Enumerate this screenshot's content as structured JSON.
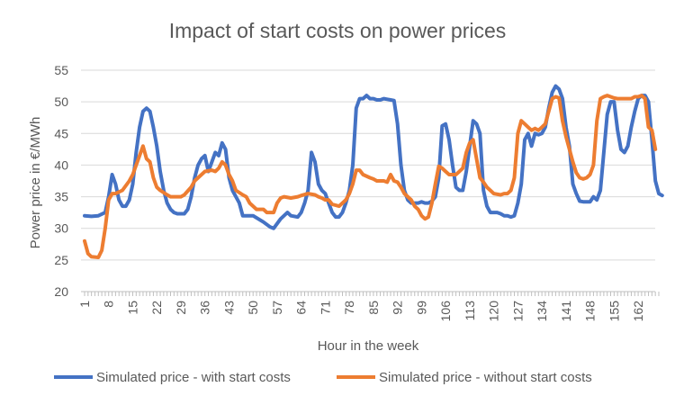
{
  "chart_data": {
    "type": "line",
    "title": "Impact of start costs on power prices",
    "xlabel": "Hour in the week",
    "ylabel": "Power price in €/MWh",
    "ylim": [
      20,
      55
    ],
    "xlim": [
      1,
      168
    ],
    "yticks": [
      "20",
      "25",
      "30",
      "35",
      "40",
      "45",
      "50",
      "55"
    ],
    "xticks": [
      "1",
      "8",
      "15",
      "22",
      "29",
      "36",
      "43",
      "50",
      "57",
      "64",
      "71",
      "78",
      "85",
      "92",
      "99",
      "106",
      "113",
      "120",
      "127",
      "134",
      "141",
      "148",
      "155",
      "162"
    ],
    "grid": true,
    "legend": "bottom",
    "series": [
      {
        "name": "Simulated price - with start costs",
        "color": "#4472C4",
        "points": [
          [
            1,
            32
          ],
          [
            3,
            31.9
          ],
          [
            5,
            32
          ],
          [
            7,
            32.5
          ],
          [
            8,
            35
          ],
          [
            9,
            38.5
          ],
          [
            10,
            37
          ],
          [
            11,
            34.5
          ],
          [
            12,
            33.5
          ],
          [
            13,
            33.5
          ],
          [
            14,
            34.5
          ],
          [
            15,
            37
          ],
          [
            16,
            42
          ],
          [
            17,
            46
          ],
          [
            18,
            48.5
          ],
          [
            19,
            49
          ],
          [
            20,
            48.5
          ],
          [
            21,
            46
          ],
          [
            22,
            43
          ],
          [
            23,
            39
          ],
          [
            24,
            36
          ],
          [
            25,
            34
          ],
          [
            26,
            33
          ],
          [
            27,
            32.5
          ],
          [
            28,
            32.3
          ],
          [
            29,
            32.3
          ],
          [
            30,
            32.3
          ],
          [
            31,
            33
          ],
          [
            32,
            35
          ],
          [
            33,
            38
          ],
          [
            34,
            40
          ],
          [
            35,
            41
          ],
          [
            36,
            41.5
          ],
          [
            37,
            39
          ],
          [
            38,
            40.5
          ],
          [
            39,
            42
          ],
          [
            40,
            41.5
          ],
          [
            41,
            43.5
          ],
          [
            42,
            42.5
          ],
          [
            43,
            38
          ],
          [
            44,
            36
          ],
          [
            45,
            35
          ],
          [
            46,
            34
          ],
          [
            47,
            32
          ],
          [
            50,
            32
          ],
          [
            53,
            31
          ],
          [
            55,
            30.2
          ],
          [
            56,
            30
          ],
          [
            58,
            31.5
          ],
          [
            60,
            32.5
          ],
          [
            61,
            32
          ],
          [
            63,
            31.8
          ],
          [
            64,
            32.5
          ],
          [
            65,
            34
          ],
          [
            66,
            36
          ],
          [
            67,
            42
          ],
          [
            68,
            40.5
          ],
          [
            69,
            37
          ],
          [
            70,
            36
          ],
          [
            71,
            35.5
          ],
          [
            72,
            34
          ],
          [
            73,
            32.5
          ],
          [
            74,
            31.8
          ],
          [
            75,
            31.8
          ],
          [
            76,
            32.5
          ],
          [
            77,
            34
          ],
          [
            78,
            36
          ],
          [
            79,
            40
          ],
          [
            80,
            49
          ],
          [
            81,
            50.5
          ],
          [
            82,
            50.5
          ],
          [
            83,
            51
          ],
          [
            84,
            50.5
          ],
          [
            85,
            50.5
          ],
          [
            86,
            50.3
          ],
          [
            87,
            50.3
          ],
          [
            88,
            50.5
          ],
          [
            89,
            50.4
          ],
          [
            90,
            50.3
          ],
          [
            91,
            50.2
          ],
          [
            92,
            46.5
          ],
          [
            93,
            40
          ],
          [
            94,
            36
          ],
          [
            95,
            34.5
          ],
          [
            96,
            34
          ],
          [
            97,
            34
          ],
          [
            98,
            34
          ],
          [
            99,
            34.2
          ],
          [
            100,
            34
          ],
          [
            101,
            34
          ],
          [
            102,
            34.3
          ],
          [
            103,
            35
          ],
          [
            104,
            38
          ],
          [
            105,
            46.2
          ],
          [
            106,
            46.5
          ],
          [
            107,
            44
          ],
          [
            108,
            40
          ],
          [
            109,
            36.5
          ],
          [
            110,
            36
          ],
          [
            111,
            36
          ],
          [
            112,
            39
          ],
          [
            113,
            43
          ],
          [
            114,
            47
          ],
          [
            115,
            46.5
          ],
          [
            116,
            45
          ],
          [
            117,
            36
          ],
          [
            118,
            33.5
          ],
          [
            119,
            32.5
          ],
          [
            120,
            32.5
          ],
          [
            121,
            32.5
          ],
          [
            122,
            32.3
          ],
          [
            123,
            32
          ],
          [
            124,
            32
          ],
          [
            125,
            31.8
          ],
          [
            126,
            32
          ],
          [
            127,
            34
          ],
          [
            128,
            37
          ],
          [
            129,
            44
          ],
          [
            130,
            45
          ],
          [
            131,
            43
          ],
          [
            132,
            45
          ],
          [
            133,
            44.8
          ],
          [
            134,
            45
          ],
          [
            135,
            46
          ],
          [
            136,
            49
          ],
          [
            137,
            51.5
          ],
          [
            138,
            52.5
          ],
          [
            139,
            52
          ],
          [
            140,
            50.5
          ],
          [
            141,
            46
          ],
          [
            142,
            43
          ],
          [
            143,
            37
          ],
          [
            144,
            35.5
          ],
          [
            145,
            34.3
          ],
          [
            146,
            34.2
          ],
          [
            147,
            34.2
          ],
          [
            148,
            34.2
          ],
          [
            149,
            35
          ],
          [
            150,
            34.5
          ],
          [
            151,
            36
          ],
          [
            152,
            42
          ],
          [
            153,
            48
          ],
          [
            154,
            50
          ],
          [
            155,
            50
          ],
          [
            156,
            45.5
          ],
          [
            157,
            42.5
          ],
          [
            158,
            42
          ],
          [
            159,
            43
          ],
          [
            160,
            46
          ],
          [
            161,
            48.5
          ],
          [
            162,
            50.5
          ],
          [
            163,
            51
          ],
          [
            164,
            51
          ],
          [
            165,
            50
          ],
          [
            166,
            44
          ],
          [
            167,
            37.5
          ],
          [
            168,
            35.5
          ],
          [
            169,
            35.2
          ]
        ]
      },
      {
        "name": "Simulated price - without start costs",
        "color": "#ED7D31",
        "points": [
          [
            1,
            28
          ],
          [
            2,
            26
          ],
          [
            3,
            25.5
          ],
          [
            5,
            25.4
          ],
          [
            6,
            26.5
          ],
          [
            7,
            30
          ],
          [
            8,
            34.5
          ],
          [
            9,
            35.5
          ],
          [
            10,
            35.5
          ],
          [
            12,
            36
          ],
          [
            14,
            37.5
          ],
          [
            15,
            38.5
          ],
          [
            16,
            40
          ],
          [
            17,
            41.5
          ],
          [
            18,
            43
          ],
          [
            19,
            41
          ],
          [
            20,
            40.5
          ],
          [
            21,
            38
          ],
          [
            22,
            36.5
          ],
          [
            23,
            36
          ],
          [
            25,
            35.3
          ],
          [
            26,
            35
          ],
          [
            29,
            35
          ],
          [
            30,
            35.3
          ],
          [
            32,
            36.5
          ],
          [
            33,
            37.5
          ],
          [
            35,
            38.5
          ],
          [
            36,
            39
          ],
          [
            38,
            39.2
          ],
          [
            39,
            39
          ],
          [
            40,
            39.5
          ],
          [
            41,
            40.5
          ],
          [
            42,
            40
          ],
          [
            43,
            38.5
          ],
          [
            44,
            37.5
          ],
          [
            45,
            36
          ],
          [
            47,
            35.3
          ],
          [
            48,
            35
          ],
          [
            49,
            34
          ],
          [
            50,
            33.5
          ],
          [
            51,
            33
          ],
          [
            52,
            33
          ],
          [
            53,
            33
          ],
          [
            54,
            32.5
          ],
          [
            56,
            32.5
          ],
          [
            57,
            34
          ],
          [
            58,
            34.8
          ],
          [
            59,
            35
          ],
          [
            61,
            34.8
          ],
          [
            63,
            35
          ],
          [
            64,
            35.2
          ],
          [
            66,
            35.5
          ],
          [
            68,
            35.3
          ],
          [
            69,
            35
          ],
          [
            70,
            34.8
          ],
          [
            71,
            34.5
          ],
          [
            72,
            34.5
          ],
          [
            73,
            33.8
          ],
          [
            75,
            33.5
          ],
          [
            76,
            34
          ],
          [
            77,
            34.5
          ],
          [
            78,
            35.5
          ],
          [
            79,
            37
          ],
          [
            80,
            39.2
          ],
          [
            81,
            39.2
          ],
          [
            82,
            38.5
          ],
          [
            84,
            38
          ],
          [
            85,
            37.8
          ],
          [
            86,
            37.5
          ],
          [
            87,
            37.5
          ],
          [
            88,
            37.5
          ],
          [
            89,
            37.3
          ],
          [
            90,
            38.5
          ],
          [
            91,
            37.5
          ],
          [
            92,
            37.3
          ],
          [
            93,
            36.5
          ],
          [
            94,
            35.5
          ],
          [
            95,
            35
          ],
          [
            96,
            34.5
          ],
          [
            97,
            33.5
          ],
          [
            98,
            33
          ],
          [
            99,
            32
          ],
          [
            100,
            31.5
          ],
          [
            101,
            31.8
          ],
          [
            102,
            34
          ],
          [
            103,
            37
          ],
          [
            104,
            39.8
          ],
          [
            105,
            39.5
          ],
          [
            106,
            39
          ],
          [
            107,
            38.5
          ],
          [
            108,
            38.5
          ],
          [
            109,
            38.5
          ],
          [
            110,
            39
          ],
          [
            111,
            39.5
          ],
          [
            112,
            42
          ],
          [
            113,
            43.5
          ],
          [
            114,
            44
          ],
          [
            115,
            41
          ],
          [
            116,
            38
          ],
          [
            117,
            37.3
          ],
          [
            118,
            36.5
          ],
          [
            119,
            36
          ],
          [
            120,
            35.5
          ],
          [
            122,
            35.3
          ],
          [
            123,
            35.5
          ],
          [
            124,
            35.5
          ],
          [
            125,
            36
          ],
          [
            126,
            38
          ],
          [
            127,
            45
          ],
          [
            128,
            47
          ],
          [
            129,
            46.5
          ],
          [
            130,
            46
          ],
          [
            131,
            45.5
          ],
          [
            132,
            45.8
          ],
          [
            133,
            45.5
          ],
          [
            134,
            46
          ],
          [
            135,
            46.5
          ],
          [
            136,
            48.5
          ],
          [
            137,
            50.5
          ],
          [
            138,
            50.8
          ],
          [
            139,
            50.6
          ],
          [
            140,
            47
          ],
          [
            141,
            44.5
          ],
          [
            142,
            42.5
          ],
          [
            143,
            40.5
          ],
          [
            144,
            38.8
          ],
          [
            145,
            38
          ],
          [
            146,
            37.8
          ],
          [
            147,
            38
          ],
          [
            148,
            38.5
          ],
          [
            149,
            40
          ],
          [
            150,
            47
          ],
          [
            151,
            50.5
          ],
          [
            152,
            50.8
          ],
          [
            153,
            51
          ],
          [
            154,
            50.8
          ],
          [
            155,
            50.6
          ],
          [
            156,
            50.5
          ],
          [
            158,
            50.5
          ],
          [
            160,
            50.5
          ],
          [
            161,
            50.8
          ],
          [
            162,
            50.8
          ],
          [
            163,
            51
          ],
          [
            164,
            50.5
          ],
          [
            165,
            46
          ],
          [
            166,
            45.5
          ],
          [
            167,
            42.5
          ]
        ]
      }
    ]
  }
}
